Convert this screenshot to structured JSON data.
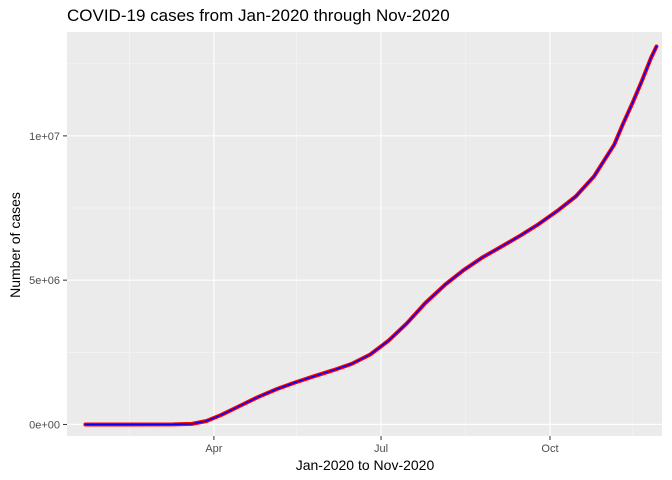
{
  "colors": {
    "panel_background": "#EBEBEB",
    "grid_major": "#FFFFFF",
    "grid_minor": "#F5F5F5",
    "line_outer": "#FF0000",
    "line_inner": "#0000FF",
    "axis_text": "#4D4D4D",
    "title_text": "#000000"
  },
  "chart_data": {
    "type": "line",
    "title": "COVID-19 cases from Jan-2020 through Nov-2020",
    "xlabel": "Jan-2020 to Nov-2020",
    "ylabel": "Number of cases",
    "x_type": "date",
    "xlim": [
      "2020-01-12",
      "2020-12-01"
    ],
    "ylim": [
      -400000,
      13600000
    ],
    "x_ticks": [
      {
        "date": "2020-04-01",
        "label": "Apr"
      },
      {
        "date": "2020-07-01",
        "label": "Jul"
      },
      {
        "date": "2020-10-01",
        "label": "Oct"
      }
    ],
    "x_minor_ticks": [
      "2020-02-15",
      "2020-05-16",
      "2020-08-16",
      "2020-11-15"
    ],
    "y_ticks": [
      {
        "value": 0,
        "label": "0e+00"
      },
      {
        "value": 5000000,
        "label": "5e+06"
      },
      {
        "value": 10000000,
        "label": "1e+07"
      }
    ],
    "y_minor_ticks": [
      2500000,
      7500000,
      12500000
    ],
    "grid": true,
    "legend": "none",
    "series": [
      {
        "x": [
          "2020-01-22",
          "2020-02-15",
          "2020-03-10",
          "2020-03-20",
          "2020-03-28",
          "2020-04-05",
          "2020-04-15",
          "2020-04-25",
          "2020-05-05",
          "2020-05-15",
          "2020-05-25",
          "2020-06-05",
          "2020-06-15",
          "2020-06-25",
          "2020-07-05",
          "2020-07-15",
          "2020-07-25",
          "2020-08-05",
          "2020-08-15",
          "2020-08-25",
          "2020-09-05",
          "2020-09-15",
          "2020-09-25",
          "2020-10-05",
          "2020-10-15",
          "2020-10-25",
          "2020-11-05",
          "2020-11-10",
          "2020-11-15",
          "2020-11-20",
          "2020-11-25",
          "2020-11-28"
        ],
        "y": [
          0,
          0,
          1000,
          20000,
          120000,
          330000,
          640000,
          950000,
          1220000,
          1450000,
          1660000,
          1880000,
          2100000,
          2420000,
          2900000,
          3500000,
          4200000,
          4850000,
          5350000,
          5780000,
          6180000,
          6550000,
          6950000,
          7400000,
          7900000,
          8600000,
          9700000,
          10450000,
          11150000,
          11900000,
          12700000,
          13100000
        ]
      }
    ]
  }
}
